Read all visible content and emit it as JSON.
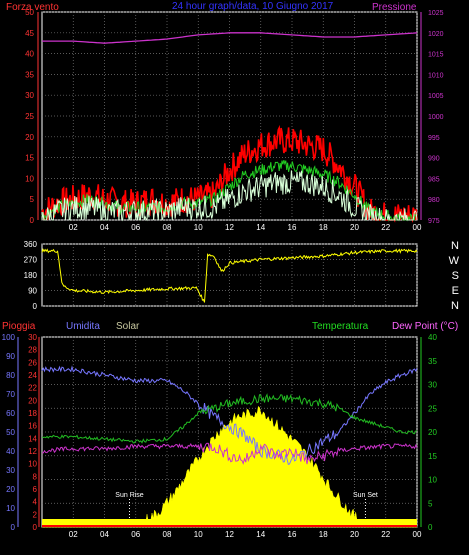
{
  "chart_data": [
    {
      "type": "line",
      "title": "24 hour graph/data, 10 Giugno 2017",
      "left_axis_label": "Forza vento",
      "right_axis_label": "Pressione",
      "x_ticks": [
        "02",
        "04",
        "06",
        "08",
        "10",
        "12",
        "14",
        "16",
        "18",
        "20",
        "22",
        "00"
      ],
      "ylim_left": [
        0,
        50
      ],
      "yticks_left": [
        0,
        5,
        10,
        15,
        20,
        25,
        30,
        35,
        40,
        45,
        50
      ],
      "ylim_right": [
        975,
        1025
      ],
      "yticks_right": [
        975,
        980,
        985,
        990,
        995,
        1000,
        1005,
        1010,
        1015,
        1020,
        1025
      ],
      "series": [
        {
          "axis": "right",
          "color": "#cc33cc",
          "x": [
            0,
            2,
            4,
            6,
            8,
            10,
            12,
            14,
            16,
            18,
            20,
            22,
            24
          ],
          "values": [
            1018,
            1018,
            1017.5,
            1018,
            1018.5,
            1019.5,
            1020,
            1020,
            1019.5,
            1019,
            1019,
            1019.5,
            1020
          ]
        },
        {
          "color": "#ff0000",
          "x": [
            0,
            1,
            2,
            3,
            4,
            5,
            6,
            7,
            8,
            9,
            10,
            11,
            12,
            13,
            14,
            15,
            16,
            17,
            18,
            19,
            20,
            21,
            22,
            23,
            24
          ],
          "values": [
            2,
            4,
            5,
            6,
            5,
            4,
            4,
            5,
            4,
            5,
            5,
            6,
            12,
            16,
            18,
            19,
            19,
            18,
            17,
            13,
            8,
            2,
            1,
            1,
            1
          ]
        },
        {
          "color": "#22cc22",
          "x": [
            0,
            1,
            2,
            3,
            4,
            5,
            6,
            7,
            8,
            9,
            10,
            11,
            12,
            13,
            14,
            15,
            16,
            17,
            18,
            19,
            20,
            21,
            22,
            23,
            24
          ],
          "values": [
            1,
            3,
            4,
            5,
            4,
            3,
            3,
            3,
            3,
            4,
            4,
            5,
            8,
            11,
            12,
            13,
            13,
            12,
            11,
            9,
            6,
            2,
            1,
            0,
            0
          ]
        },
        {
          "color": "#d8ffd8",
          "x": [
            0,
            1,
            2,
            3,
            4,
            5,
            6,
            7,
            8,
            9,
            10,
            11,
            12,
            13,
            14,
            15,
            16,
            17,
            18,
            19,
            20,
            21,
            22,
            23,
            24
          ],
          "values": [
            0,
            2,
            3,
            3,
            2,
            2,
            2,
            2,
            2,
            3,
            3,
            3,
            5,
            7,
            8,
            9,
            9,
            9,
            8,
            6,
            3,
            1,
            0,
            0,
            0
          ]
        }
      ]
    },
    {
      "type": "line",
      "right_labels": [
        "N",
        "W",
        "S",
        "E",
        "N"
      ],
      "x_ticks": [
        "02",
        "04",
        "06",
        "08",
        "10",
        "12",
        "14",
        "16",
        "18",
        "20",
        "22",
        "00"
      ],
      "ylim": [
        0,
        360
      ],
      "yticks": [
        0,
        90,
        180,
        270,
        360
      ],
      "series": [
        {
          "color": "#ffff00",
          "x": [
            0,
            1,
            1.3,
            2,
            4,
            6,
            8,
            9.9,
            10.4,
            10.6,
            11,
            11.5,
            12,
            13,
            14,
            16,
            18,
            20,
            22,
            24
          ],
          "values": [
            320,
            320,
            120,
            90,
            80,
            90,
            100,
            105,
            20,
            300,
            290,
            200,
            250,
            260,
            270,
            280,
            290,
            310,
            320,
            320
          ]
        }
      ]
    },
    {
      "type": "line",
      "legend": [
        "Pioggia",
        "Umidita",
        "Solar",
        "Temperatura",
        "Dew Point (°C)"
      ],
      "x_ticks": [
        "02",
        "04",
        "06",
        "08",
        "10",
        "12",
        "14",
        "16",
        "18",
        "20",
        "22",
        "00"
      ],
      "ylim_humidity": [
        0,
        100
      ],
      "yticks_humidity": [
        0,
        10,
        20,
        30,
        40,
        50,
        60,
        70,
        80,
        90,
        100
      ],
      "ylim_rain": [
        0,
        30
      ],
      "yticks_rain": [
        0,
        2,
        4,
        6,
        8,
        10,
        12,
        14,
        16,
        18,
        20,
        22,
        24,
        26,
        28,
        30
      ],
      "ylim_temp": [
        0,
        40
      ],
      "yticks_temp": [
        0,
        5,
        10,
        15,
        20,
        25,
        30,
        35,
        40
      ],
      "annotations": [
        "Sun Rise",
        "Sun Set"
      ],
      "sunrise_hour": 5.6,
      "sunset_hour": 20.7,
      "series": [
        {
          "name": "Umidita",
          "color": "#7777ff",
          "axis": "humidity",
          "x": [
            0,
            2,
            4,
            6,
            8,
            9,
            10,
            11,
            12,
            13,
            14,
            15,
            16,
            17,
            18,
            19,
            20,
            21,
            22,
            23,
            24
          ],
          "values": [
            83,
            83,
            80,
            77,
            77,
            72,
            65,
            58,
            53,
            48,
            40,
            38,
            35,
            40,
            45,
            50,
            60,
            70,
            76,
            80,
            83
          ]
        },
        {
          "name": "Temperatura",
          "color": "#22bb22",
          "axis": "temp",
          "x": [
            0,
            2,
            4,
            6,
            8,
            9,
            10,
            11,
            12,
            13,
            14,
            16,
            18,
            19,
            20,
            21,
            22,
            23,
            24
          ],
          "values": [
            19,
            19,
            18.5,
            18,
            18.5,
            21,
            24,
            25,
            26,
            26.5,
            27,
            27,
            26,
            25,
            23,
            22,
            21,
            20,
            20
          ]
        },
        {
          "name": "Dew Point (°C)",
          "color": "#cc33cc",
          "axis": "temp",
          "x": [
            0,
            2,
            4,
            6,
            8,
            10,
            11,
            12,
            13,
            14,
            15,
            16,
            17,
            18,
            19,
            20,
            22,
            24
          ],
          "values": [
            16,
            16.5,
            16.5,
            17,
            17,
            17,
            17,
            15,
            14,
            17,
            15,
            16,
            14,
            15,
            16,
            16.5,
            17,
            17
          ]
        },
        {
          "name": "Solar",
          "color": "#ffff00",
          "axis": "humidity",
          "x": [
            0,
            5.6,
            6.5,
            7.5,
            8.5,
            9.5,
            10.5,
            11.5,
            12.5,
            13.5,
            14,
            14.5,
            15.5,
            16.5,
            17.5,
            18.5,
            19.5,
            20.7,
            24
          ],
          "values": [
            0,
            0,
            3,
            8,
            18,
            30,
            42,
            52,
            58,
            60,
            62,
            58,
            50,
            42,
            32,
            20,
            10,
            0,
            0
          ]
        },
        {
          "name": "Pioggia",
          "color": "#ff0000",
          "axis": "rain",
          "x": [
            0,
            24
          ],
          "values": [
            0,
            0
          ]
        }
      ]
    }
  ]
}
